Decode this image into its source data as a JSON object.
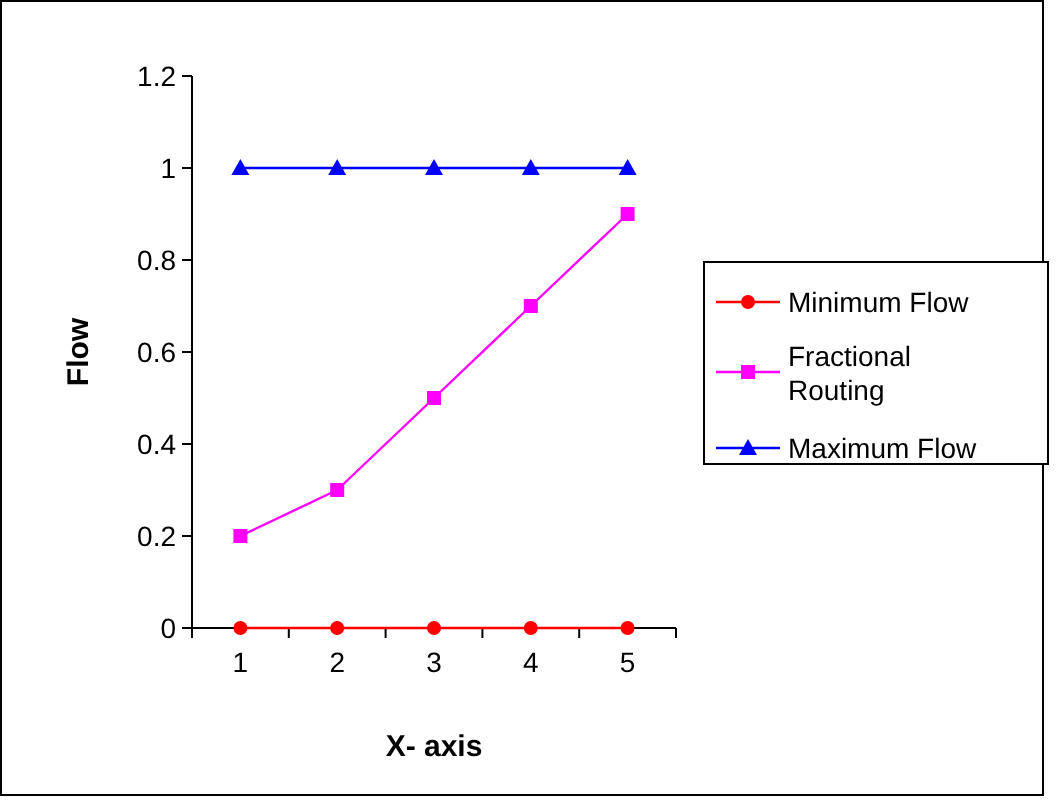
{
  "chart_data": {
    "type": "line",
    "xlabel": "X- axis",
    "ylabel": "Flow",
    "categories": [
      "1",
      "2",
      "3",
      "4",
      "5"
    ],
    "ylim": [
      0,
      1.2
    ],
    "yticks": [
      0,
      0.2,
      0.4,
      0.6,
      0.8,
      1,
      1.2
    ],
    "grid": false,
    "legend": "right",
    "series": [
      {
        "name": "Minimum Flow",
        "color": "#ff0000",
        "marker": "circle",
        "values": [
          0,
          0,
          0,
          0,
          0
        ]
      },
      {
        "name": "Fractional Routing",
        "color": "#ff00ff",
        "marker": "square",
        "values": [
          0.2,
          0.3,
          0.5,
          0.7,
          0.9
        ]
      },
      {
        "name": "Maximum Flow",
        "color": "#0000ff",
        "marker": "triangle",
        "values": [
          1,
          1,
          1,
          1,
          1
        ]
      }
    ]
  }
}
